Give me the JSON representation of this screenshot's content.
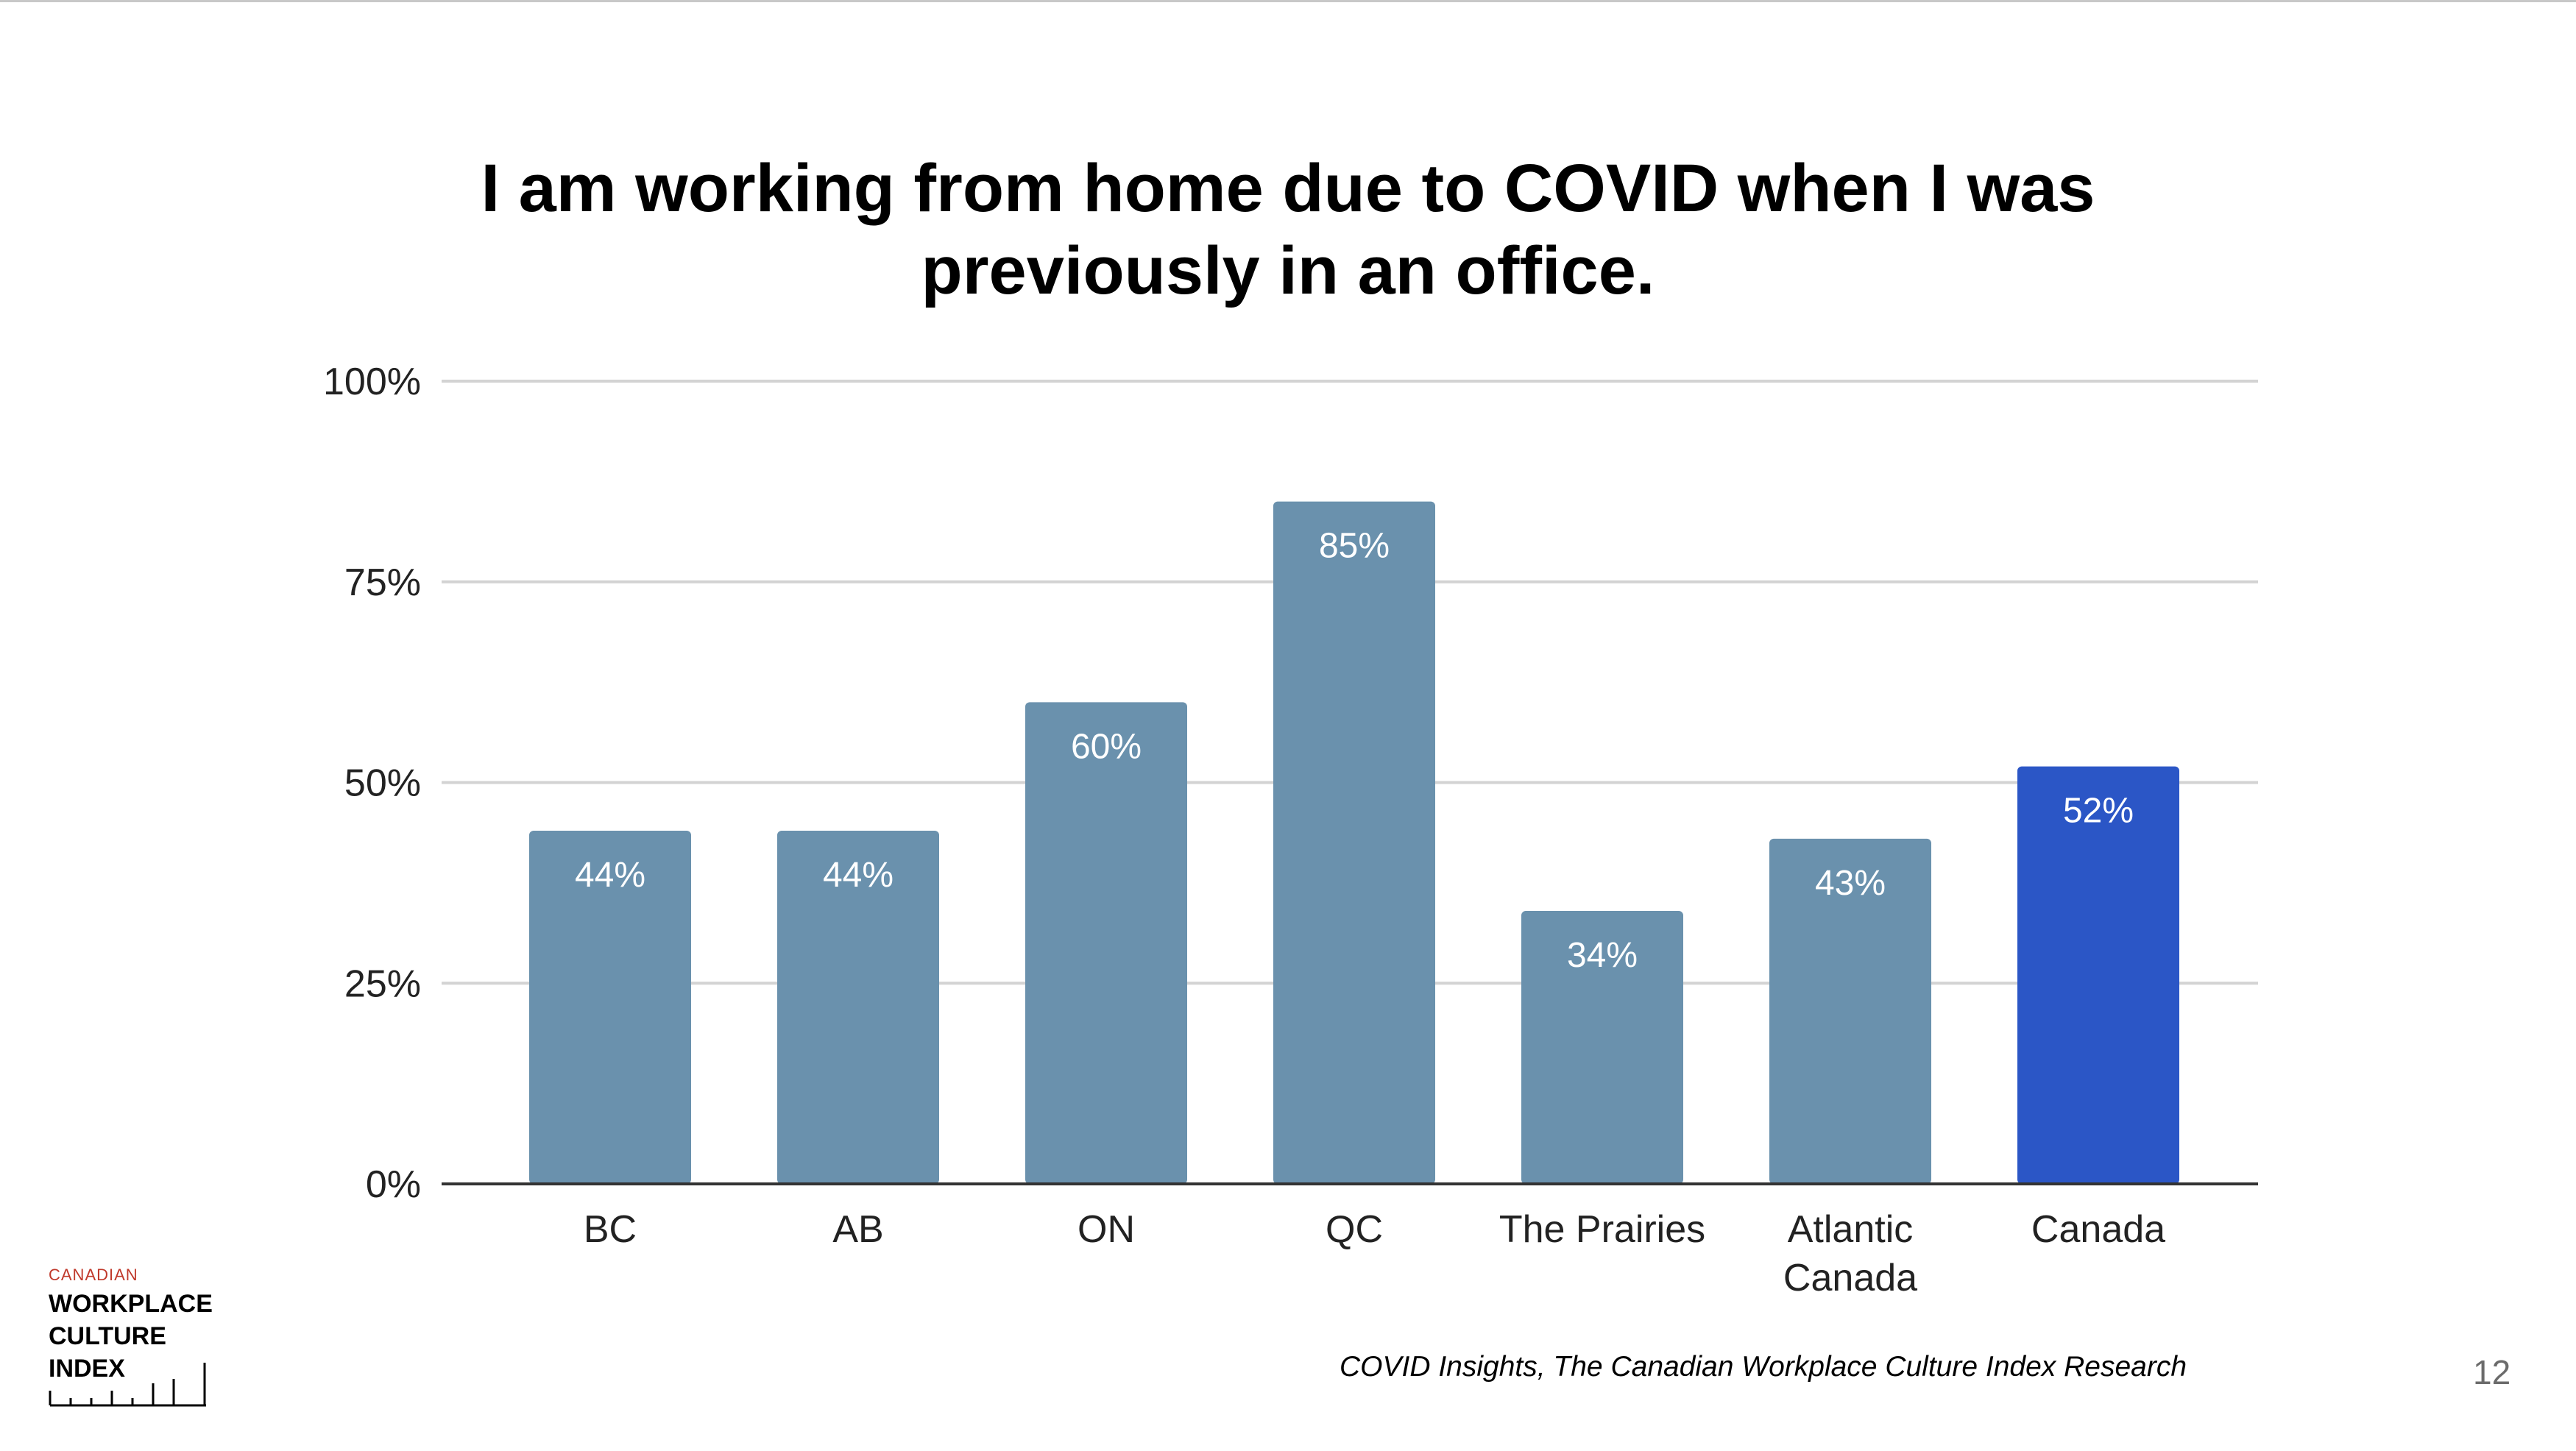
{
  "slide": {
    "page_number": "12",
    "source": "COVID Insights, The Canadian Workplace Culture Index Research"
  },
  "logo": {
    "line1": "CANADIAN",
    "line2": "WORKPLACE",
    "line3": "CULTURE",
    "line4": "INDEX",
    "accent_color": "#c0392b"
  },
  "chart_data": {
    "type": "bar",
    "title": "I am working from home due to COVID when I was previously in an office.",
    "xlabel": "",
    "ylabel": "",
    "categories": [
      "BC",
      "AB",
      "ON",
      "QC",
      "The Prairies",
      "Atlantic Canada",
      "Canada"
    ],
    "category_lines": [
      [
        "BC"
      ],
      [
        "AB"
      ],
      [
        "ON"
      ],
      [
        "QC"
      ],
      [
        "The Prairies"
      ],
      [
        "Atlantic",
        "Canada"
      ],
      [
        "Canada"
      ]
    ],
    "values": [
      44,
      44,
      60,
      85,
      34,
      43,
      52
    ],
    "data_labels": [
      "44%",
      "44%",
      "60%",
      "85%",
      "34%",
      "43%",
      "52%"
    ],
    "ylim": [
      0,
      100
    ],
    "yticks": [
      0,
      25,
      50,
      75,
      100
    ],
    "ytick_labels": [
      "0%",
      "25%",
      "50%",
      "75%",
      "100%"
    ],
    "grid": true,
    "legend": "none",
    "colors": {
      "bar": "#6a91ad",
      "highlight_bar": "#2b56c6",
      "highlight_category": "Canada",
      "grid": "#d3d3d3",
      "baseline": "#333333",
      "data_label": "#ffffff",
      "axis_text": "#222222"
    }
  }
}
